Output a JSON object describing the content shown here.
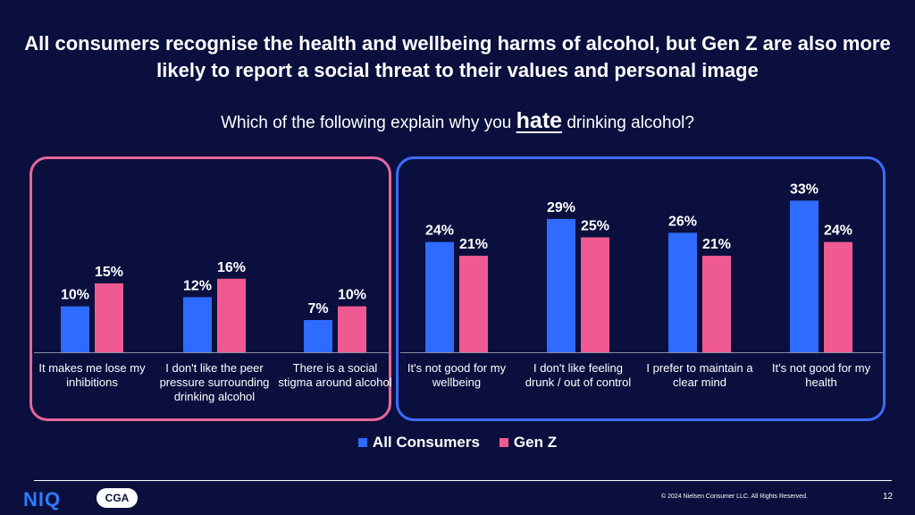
{
  "title": "All consumers recognise the health and wellbeing harms of alcohol, but Gen Z are also more likely to report a social threat to their values and personal image",
  "question": {
    "before": "Which of the following explain why you",
    "emphasis": "hate",
    "after": "drinking alcohol?"
  },
  "colors": {
    "background": "#0a0f3d",
    "all_consumers": "#2f6bff",
    "gen_z": "#f05a92",
    "group_social": "#e8679a",
    "group_health": "#3b6cff"
  },
  "chart_data": {
    "type": "bar",
    "categories": [
      "It makes me lose my inhibitions",
      "I don't like the peer pressure surrounding drinking alcohol",
      "There is a social stigma around alcohol",
      "It's not good for my wellbeing",
      "I don't like feeling drunk / out of control",
      "I prefer to maintain a clear mind",
      "It's not good for my health"
    ],
    "series": [
      {
        "name": "All Consumers",
        "values": [
          10,
          12,
          7,
          24,
          29,
          26,
          33
        ],
        "labels": [
          "10%",
          "12%",
          "7%",
          "24%",
          "29%",
          "26%",
          "33%"
        ]
      },
      {
        "name": "Gen Z",
        "values": [
          15,
          16,
          10,
          21,
          25,
          21,
          24
        ],
        "labels": [
          "15%",
          "16%",
          "10%",
          "21%",
          "25%",
          "21%",
          "24%"
        ]
      }
    ],
    "groups": [
      {
        "categories": [
          0,
          1,
          2
        ]
      },
      {
        "categories": [
          3,
          4,
          5,
          6
        ]
      }
    ],
    "legend_position": "bottom",
    "grid": false
  },
  "footer": {
    "niq_logo": "NIQ",
    "cga_logo": "CGA",
    "copyright": "© 2024 Nielsen Consumer LLC. All Rights Reserved.",
    "page_number": "12"
  }
}
